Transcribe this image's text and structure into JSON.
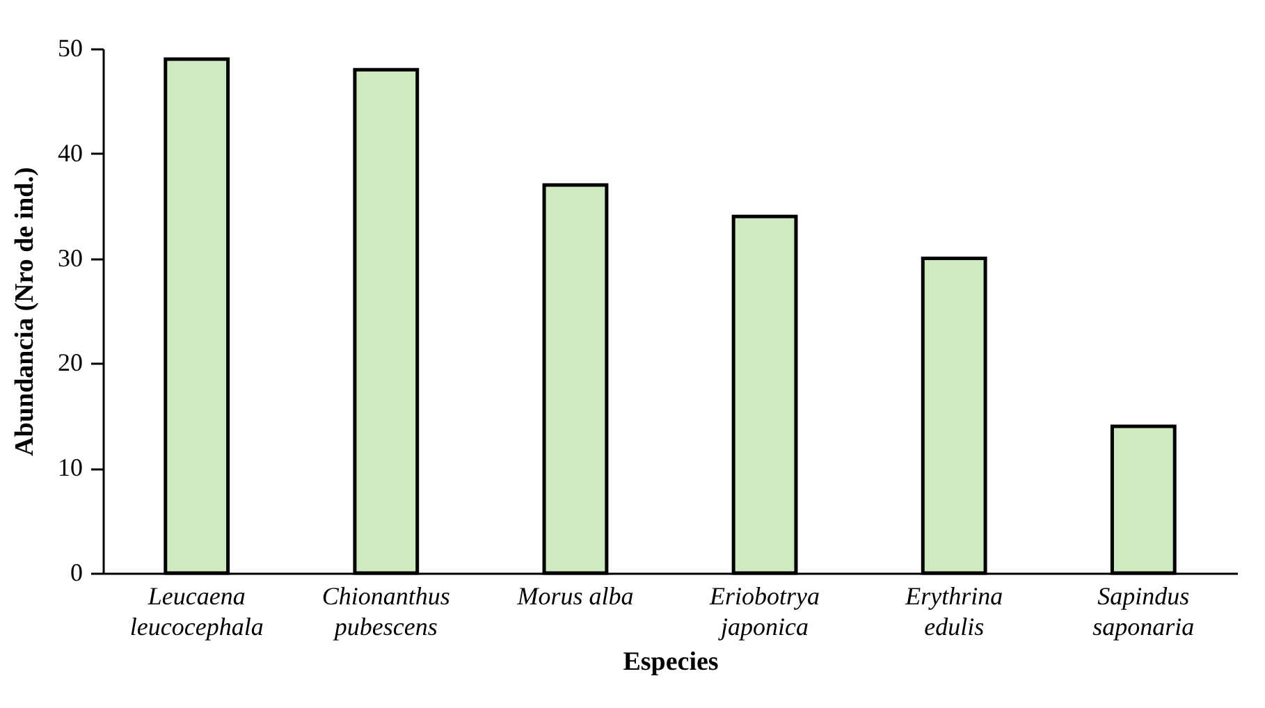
{
  "chart_data": {
    "type": "bar",
    "xlabel": "Especies",
    "ylabel": "Abundancia (Nro de ind.)",
    "categories": [
      "Leucaena leucocephala",
      "Chionanthus pubescens",
      "Morus alba",
      "Eriobotrya japonica",
      "Erythrina edulis",
      "Sapindus saponaria"
    ],
    "series": [
      {
        "color": "#cfeac0",
        "values": [
          49,
          48,
          37,
          34,
          30,
          14
        ]
      }
    ],
    "ylim": [
      0,
      50
    ],
    "yticks": [
      0,
      10,
      20,
      30,
      40,
      50
    ],
    "grid": false
  }
}
